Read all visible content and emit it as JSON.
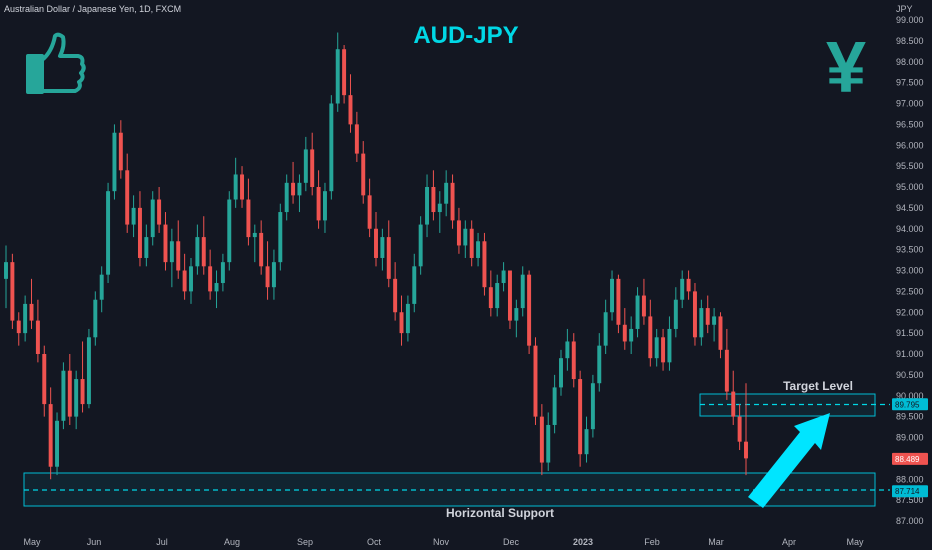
{
  "header": {
    "symbol_line": "Australian Dollar / Japanese Yen, 1D, FXCM",
    "title": "AUD-JPY"
  },
  "icons": [
    "thumbs-up-icon",
    "yen-icon"
  ],
  "colors": {
    "up": "#26a69a",
    "down": "#ef5350",
    "accent": "#00d8e6",
    "zone": "#00bcd4"
  },
  "chart_data": {
    "type": "candlestick",
    "ylabel": "JPY",
    "ylim": [
      87.0,
      99.0
    ],
    "y_ticks": [
      99.0,
      98.5,
      98.0,
      97.5,
      97.0,
      96.5,
      96.0,
      95.5,
      95.0,
      94.5,
      94.0,
      93.5,
      93.0,
      92.5,
      92.0,
      91.5,
      91.0,
      90.5,
      90.0,
      89.5,
      89.0,
      88.5,
      88.0,
      87.5,
      87.0
    ],
    "x_ticks": [
      "May",
      "Jun",
      "Jul",
      "Aug",
      "Sep",
      "Oct",
      "Nov",
      "Dec",
      "2023",
      "Feb",
      "Mar",
      "Apr",
      "May"
    ],
    "price_tags": [
      {
        "value": "89.795",
        "color": "#00bcd4"
      },
      {
        "value": "88.489",
        "color": "#ef5350"
      },
      {
        "value": "87.714",
        "color": "#00bcd4"
      }
    ],
    "series": [
      {
        "values": [
          [
            92.8,
            93.6,
            92.1,
            93.2
          ],
          [
            93.2,
            93.4,
            91.6,
            91.8
          ],
          [
            91.8,
            92.0,
            91.2,
            91.5
          ],
          [
            91.5,
            92.4,
            91.3,
            92.2
          ],
          [
            92.2,
            92.8,
            91.6,
            91.8
          ],
          [
            91.8,
            92.3,
            90.8,
            91.0
          ],
          [
            91.0,
            91.2,
            89.5,
            89.8
          ],
          [
            89.8,
            90.2,
            88.0,
            88.3
          ],
          [
            88.3,
            89.6,
            88.1,
            89.4
          ],
          [
            89.4,
            90.8,
            89.2,
            90.6
          ],
          [
            90.6,
            91.0,
            89.3,
            89.5
          ],
          [
            89.5,
            90.6,
            89.2,
            90.4
          ],
          [
            90.4,
            91.3,
            89.6,
            89.8
          ],
          [
            89.8,
            91.6,
            89.7,
            91.4
          ],
          [
            91.4,
            92.5,
            91.2,
            92.3
          ],
          [
            92.3,
            93.1,
            92.0,
            92.9
          ],
          [
            92.9,
            95.1,
            92.7,
            94.9
          ],
          [
            94.9,
            96.5,
            94.7,
            96.3
          ],
          [
            96.3,
            96.6,
            95.2,
            95.4
          ],
          [
            95.4,
            95.8,
            93.9,
            94.1
          ],
          [
            94.1,
            94.8,
            93.8,
            94.5
          ],
          [
            94.5,
            94.9,
            93.1,
            93.3
          ],
          [
            93.3,
            94.1,
            93.1,
            93.8
          ],
          [
            93.8,
            94.9,
            93.6,
            94.7
          ],
          [
            94.7,
            95.0,
            93.9,
            94.1
          ],
          [
            94.1,
            94.4,
            93.0,
            93.2
          ],
          [
            93.2,
            94.0,
            92.6,
            93.7
          ],
          [
            93.7,
            94.2,
            92.8,
            93.0
          ],
          [
            93.0,
            93.4,
            92.3,
            92.5
          ],
          [
            92.5,
            93.3,
            92.2,
            93.1
          ],
          [
            93.1,
            94.1,
            92.9,
            93.8
          ],
          [
            93.8,
            94.3,
            92.9,
            93.1
          ],
          [
            93.1,
            93.5,
            92.3,
            92.5
          ],
          [
            92.5,
            93.0,
            92.1,
            92.7
          ],
          [
            92.7,
            93.4,
            92.5,
            93.2
          ],
          [
            93.2,
            94.9,
            93.0,
            94.7
          ],
          [
            94.7,
            95.7,
            94.5,
            95.3
          ],
          [
            95.3,
            95.5,
            94.5,
            94.7
          ],
          [
            94.7,
            95.2,
            93.6,
            93.8
          ],
          [
            93.8,
            94.1,
            93.2,
            93.9
          ],
          [
            93.9,
            94.2,
            92.9,
            93.1
          ],
          [
            93.1,
            93.7,
            92.3,
            92.6
          ],
          [
            92.6,
            93.5,
            92.3,
            93.2
          ],
          [
            93.2,
            94.6,
            93.0,
            94.4
          ],
          [
            94.4,
            95.3,
            94.2,
            95.1
          ],
          [
            95.1,
            95.6,
            94.6,
            94.8
          ],
          [
            94.8,
            95.3,
            94.4,
            95.1
          ],
          [
            95.1,
            96.2,
            94.9,
            95.9
          ],
          [
            95.9,
            96.3,
            94.8,
            95.0
          ],
          [
            95.0,
            95.4,
            94.0,
            94.2
          ],
          [
            94.2,
            95.1,
            93.9,
            94.9
          ],
          [
            94.9,
            97.2,
            94.7,
            97.0
          ],
          [
            97.0,
            98.7,
            96.8,
            98.3
          ],
          [
            98.3,
            98.4,
            97.0,
            97.2
          ],
          [
            97.2,
            97.7,
            96.3,
            96.5
          ],
          [
            96.5,
            96.8,
            95.6,
            95.8
          ],
          [
            95.8,
            96.1,
            94.6,
            94.8
          ],
          [
            94.8,
            95.2,
            93.8,
            94.0
          ],
          [
            94.0,
            94.4,
            93.1,
            93.3
          ],
          [
            93.3,
            94.0,
            93.0,
            93.8
          ],
          [
            93.8,
            94.2,
            92.6,
            92.8
          ],
          [
            92.8,
            93.2,
            91.8,
            92.0
          ],
          [
            92.0,
            92.4,
            91.2,
            91.5
          ],
          [
            91.5,
            92.4,
            91.3,
            92.2
          ],
          [
            92.2,
            93.4,
            92.0,
            93.1
          ],
          [
            93.1,
            94.3,
            92.9,
            94.1
          ],
          [
            94.1,
            95.3,
            93.8,
            95.0
          ],
          [
            95.0,
            95.4,
            94.2,
            94.4
          ],
          [
            94.4,
            94.9,
            93.9,
            94.6
          ],
          [
            94.6,
            95.4,
            94.3,
            95.1
          ],
          [
            95.1,
            95.3,
            94.0,
            94.2
          ],
          [
            94.2,
            94.5,
            93.4,
            93.6
          ],
          [
            93.6,
            94.2,
            93.3,
            94.0
          ],
          [
            94.0,
            94.2,
            93.1,
            93.3
          ],
          [
            93.3,
            93.9,
            93.1,
            93.7
          ],
          [
            93.7,
            93.9,
            92.4,
            92.6
          ],
          [
            92.6,
            93.0,
            91.9,
            92.1
          ],
          [
            92.1,
            92.9,
            91.9,
            92.7
          ],
          [
            92.7,
            93.2,
            92.5,
            93.0
          ],
          [
            93.0,
            93.0,
            91.6,
            91.8
          ],
          [
            91.8,
            92.3,
            91.4,
            92.1
          ],
          [
            92.1,
            93.1,
            91.9,
            92.9
          ],
          [
            92.9,
            93.0,
            91.0,
            91.2
          ],
          [
            91.2,
            91.4,
            89.3,
            89.5
          ],
          [
            89.5,
            89.8,
            88.1,
            88.4
          ],
          [
            88.4,
            89.6,
            88.2,
            89.3
          ],
          [
            89.3,
            90.5,
            89.1,
            90.2
          ],
          [
            90.2,
            91.1,
            90.0,
            90.9
          ],
          [
            90.9,
            91.6,
            90.6,
            91.3
          ],
          [
            91.3,
            91.5,
            90.2,
            90.4
          ],
          [
            90.4,
            90.6,
            88.3,
            88.6
          ],
          [
            88.6,
            89.5,
            88.4,
            89.2
          ],
          [
            89.2,
            90.5,
            89.0,
            90.3
          ],
          [
            90.3,
            91.5,
            90.1,
            91.2
          ],
          [
            91.2,
            92.3,
            91.0,
            92.0
          ],
          [
            92.0,
            93.0,
            91.8,
            92.8
          ],
          [
            92.8,
            92.9,
            91.5,
            91.7
          ],
          [
            91.7,
            92.1,
            91.1,
            91.3
          ],
          [
            91.3,
            91.9,
            91.0,
            91.6
          ],
          [
            91.6,
            92.6,
            91.4,
            92.4
          ],
          [
            92.4,
            92.8,
            91.7,
            91.9
          ],
          [
            91.9,
            92.3,
            90.7,
            90.9
          ],
          [
            90.9,
            91.6,
            90.7,
            91.4
          ],
          [
            91.4,
            91.6,
            90.6,
            90.8
          ],
          [
            90.8,
            91.9,
            90.6,
            91.6
          ],
          [
            91.6,
            92.6,
            91.4,
            92.3
          ],
          [
            92.3,
            93.0,
            92.1,
            92.8
          ],
          [
            92.8,
            93.0,
            92.3,
            92.5
          ],
          [
            92.5,
            92.7,
            91.2,
            91.4
          ],
          [
            91.4,
            92.3,
            91.2,
            92.1
          ],
          [
            92.1,
            92.4,
            91.5,
            91.7
          ],
          [
            91.7,
            92.1,
            91.3,
            91.9
          ],
          [
            91.9,
            92.0,
            90.9,
            91.1
          ],
          [
            91.1,
            91.6,
            89.9,
            90.1
          ],
          [
            90.1,
            90.6,
            89.3,
            89.5
          ],
          [
            89.5,
            89.8,
            88.7,
            88.9
          ],
          [
            88.9,
            90.3,
            88.1,
            88.5
          ]
        ]
      }
    ]
  },
  "annotations": {
    "target_label": "Target Level",
    "support_label": "Horizontal Support"
  }
}
